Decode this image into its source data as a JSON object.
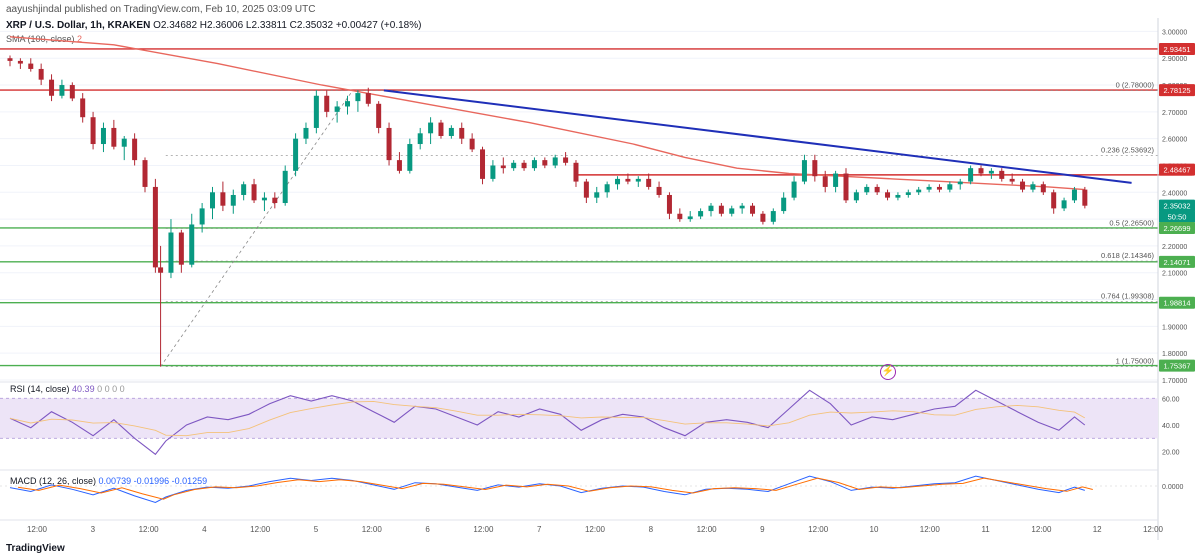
{
  "header": {
    "published": "aayushjindal published on TradingView.com, Feb 10, 2025 03:09 UTC",
    "symbol": "XRP / U.S. Dollar, 1h, KRAKEN",
    "ohlc": "O2.34682 H2.36006 L2.33811 C2.35032 +0.00427 (+0.18%)",
    "sma_label": "SMA (100, close)",
    "sma_value": "2"
  },
  "colors": {
    "up": "#089981",
    "down": "#b22833",
    "trendline": "#1f2fb8",
    "sma": "#e8675d",
    "resistance": "#d32f2f",
    "support": "#4caf50",
    "rsi": "#7e57c2",
    "rsi_band": "#ede4f7"
  },
  "chart_data": {
    "type": "candlestick",
    "ylim": [
      1.7,
      3.05
    ],
    "y_ticks": [
      "3.00000",
      "2.90000",
      "2.80000",
      "2.70000",
      "2.60000",
      "2.50000",
      "2.40000",
      "2.30000",
      "2.20000",
      "2.10000",
      "2.00000",
      "1.90000",
      "1.80000",
      "1.70000"
    ],
    "x_ticks": [
      "12:00",
      "3",
      "12:00",
      "4",
      "12:00",
      "5",
      "12:00",
      "6",
      "12:00",
      "7",
      "12:00",
      "8",
      "12:00",
      "9",
      "12:00",
      "10",
      "12:00",
      "11",
      "12:00",
      "12",
      "12:00"
    ],
    "price_tags": [
      {
        "value": 2.93451,
        "label": "2.93451",
        "color": "#d32f2f"
      },
      {
        "value": 2.78125,
        "label": "2.78125",
        "color": "#d32f2f"
      },
      {
        "value": 2.48467,
        "label": "2.48467",
        "color": "#d32f2f"
      },
      {
        "value": 2.35032,
        "label": "2.35032",
        "color": "#089981"
      },
      {
        "value": 2.35032,
        "label": "50:50",
        "color": "#089981",
        "offset": 1
      },
      {
        "value": 2.26699,
        "label": "2.26699",
        "color": "#4caf50"
      },
      {
        "value": 2.14071,
        "label": "2.14071",
        "color": "#4caf50"
      },
      {
        "value": 1.98814,
        "label": "1.98814",
        "color": "#4caf50"
      },
      {
        "value": 1.75367,
        "label": "1.75367",
        "color": "#4caf50"
      }
    ],
    "fib_levels": [
      {
        "label": "0 (2.78000)",
        "value": 2.78
      },
      {
        "label": "0.236 (2.53692)",
        "value": 2.53692
      },
      {
        "label": "0.5 (2.26500)",
        "value": 2.265
      },
      {
        "label": "0.618 (2.14346)",
        "value": 2.14346
      },
      {
        "label": "0.764 (1.99308)",
        "value": 1.99308
      },
      {
        "label": "1 (1.75000)",
        "value": 1.75
      }
    ],
    "horizontal_lines": [
      {
        "value": 2.93451,
        "color": "#d32f2f"
      },
      {
        "value": 2.78125,
        "color": "#d32f2f"
      },
      {
        "value": 2.26699,
        "color": "#4caf50"
      },
      {
        "value": 2.14071,
        "color": "#4caf50"
      },
      {
        "value": 1.98814,
        "color": "#4caf50"
      },
      {
        "value": 1.75367,
        "color": "#4caf50"
      }
    ],
    "trendline": {
      "x1": 3.6,
      "y1": 2.78,
      "x2": 10.8,
      "y2": 2.435
    },
    "resistance_segment": {
      "x1": 5.45,
      "x2": 11.0,
      "value": 2.465
    },
    "candles": [
      {
        "x": 0.0,
        "o": 2.9,
        "h": 2.91,
        "l": 2.87,
        "c": 2.89
      },
      {
        "x": 0.1,
        "o": 2.89,
        "h": 2.9,
        "l": 2.86,
        "c": 2.88
      },
      {
        "x": 0.2,
        "o": 2.88,
        "h": 2.9,
        "l": 2.85,
        "c": 2.86
      },
      {
        "x": 0.3,
        "o": 2.86,
        "h": 2.88,
        "l": 2.8,
        "c": 2.82
      },
      {
        "x": 0.4,
        "o": 2.82,
        "h": 2.84,
        "l": 2.74,
        "c": 2.76
      },
      {
        "x": 0.5,
        "o": 2.76,
        "h": 2.82,
        "l": 2.75,
        "c": 2.8
      },
      {
        "x": 0.6,
        "o": 2.8,
        "h": 2.81,
        "l": 2.74,
        "c": 2.75
      },
      {
        "x": 0.7,
        "o": 2.75,
        "h": 2.77,
        "l": 2.66,
        "c": 2.68
      },
      {
        "x": 0.8,
        "o": 2.68,
        "h": 2.7,
        "l": 2.56,
        "c": 2.58
      },
      {
        "x": 0.9,
        "o": 2.58,
        "h": 2.66,
        "l": 2.55,
        "c": 2.64
      },
      {
        "x": 1.0,
        "o": 2.64,
        "h": 2.67,
        "l": 2.56,
        "c": 2.57
      },
      {
        "x": 1.1,
        "o": 2.57,
        "h": 2.61,
        "l": 2.52,
        "c": 2.6
      },
      {
        "x": 1.2,
        "o": 2.6,
        "h": 2.62,
        "l": 2.5,
        "c": 2.52
      },
      {
        "x": 1.3,
        "o": 2.52,
        "h": 2.53,
        "l": 2.4,
        "c": 2.42
      },
      {
        "x": 1.4,
        "o": 2.42,
        "h": 2.45,
        "l": 2.1,
        "c": 2.12
      },
      {
        "x": 1.45,
        "o": 2.12,
        "h": 2.2,
        "l": 1.75,
        "c": 2.1
      },
      {
        "x": 1.55,
        "o": 2.1,
        "h": 2.3,
        "l": 2.08,
        "c": 2.25
      },
      {
        "x": 1.65,
        "o": 2.25,
        "h": 2.26,
        "l": 2.1,
        "c": 2.13
      },
      {
        "x": 1.75,
        "o": 2.13,
        "h": 2.32,
        "l": 2.12,
        "c": 2.28
      },
      {
        "x": 1.85,
        "o": 2.28,
        "h": 2.36,
        "l": 2.25,
        "c": 2.34
      },
      {
        "x": 1.95,
        "o": 2.34,
        "h": 2.42,
        "l": 2.3,
        "c": 2.4
      },
      {
        "x": 2.05,
        "o": 2.4,
        "h": 2.44,
        "l": 2.33,
        "c": 2.35
      },
      {
        "x": 2.15,
        "o": 2.35,
        "h": 2.41,
        "l": 2.32,
        "c": 2.39
      },
      {
        "x": 2.25,
        "o": 2.39,
        "h": 2.44,
        "l": 2.37,
        "c": 2.43
      },
      {
        "x": 2.35,
        "o": 2.43,
        "h": 2.45,
        "l": 2.36,
        "c": 2.37
      },
      {
        "x": 2.45,
        "o": 2.37,
        "h": 2.4,
        "l": 2.33,
        "c": 2.38
      },
      {
        "x": 2.55,
        "o": 2.38,
        "h": 2.4,
        "l": 2.34,
        "c": 2.36
      },
      {
        "x": 2.65,
        "o": 2.36,
        "h": 2.5,
        "l": 2.35,
        "c": 2.48
      },
      {
        "x": 2.75,
        "o": 2.48,
        "h": 2.62,
        "l": 2.46,
        "c": 2.6
      },
      {
        "x": 2.85,
        "o": 2.6,
        "h": 2.66,
        "l": 2.58,
        "c": 2.64
      },
      {
        "x": 2.95,
        "o": 2.64,
        "h": 2.78,
        "l": 2.62,
        "c": 2.76
      },
      {
        "x": 3.05,
        "o": 2.76,
        "h": 2.78,
        "l": 2.68,
        "c": 2.7
      },
      {
        "x": 3.15,
        "o": 2.7,
        "h": 2.74,
        "l": 2.66,
        "c": 2.72
      },
      {
        "x": 3.25,
        "o": 2.72,
        "h": 2.76,
        "l": 2.69,
        "c": 2.74
      },
      {
        "x": 3.35,
        "o": 2.74,
        "h": 2.78,
        "l": 2.7,
        "c": 2.77
      },
      {
        "x": 3.45,
        "o": 2.77,
        "h": 2.79,
        "l": 2.72,
        "c": 2.73
      },
      {
        "x": 3.55,
        "o": 2.73,
        "h": 2.74,
        "l": 2.62,
        "c": 2.64
      },
      {
        "x": 3.65,
        "o": 2.64,
        "h": 2.66,
        "l": 2.5,
        "c": 2.52
      },
      {
        "x": 3.75,
        "o": 2.52,
        "h": 2.55,
        "l": 2.47,
        "c": 2.48
      },
      {
        "x": 3.85,
        "o": 2.48,
        "h": 2.6,
        "l": 2.47,
        "c": 2.58
      },
      {
        "x": 3.95,
        "o": 2.58,
        "h": 2.64,
        "l": 2.56,
        "c": 2.62
      },
      {
        "x": 4.05,
        "o": 2.62,
        "h": 2.68,
        "l": 2.58,
        "c": 2.66
      },
      {
        "x": 4.15,
        "o": 2.66,
        "h": 2.67,
        "l": 2.6,
        "c": 2.61
      },
      {
        "x": 4.25,
        "o": 2.61,
        "h": 2.65,
        "l": 2.6,
        "c": 2.64
      },
      {
        "x": 4.35,
        "o": 2.64,
        "h": 2.66,
        "l": 2.58,
        "c": 2.6
      },
      {
        "x": 4.45,
        "o": 2.6,
        "h": 2.62,
        "l": 2.55,
        "c": 2.56
      },
      {
        "x": 4.55,
        "o": 2.56,
        "h": 2.57,
        "l": 2.43,
        "c": 2.45
      },
      {
        "x": 4.65,
        "o": 2.45,
        "h": 2.52,
        "l": 2.44,
        "c": 2.5
      },
      {
        "x": 4.75,
        "o": 2.5,
        "h": 2.53,
        "l": 2.47,
        "c": 2.49
      },
      {
        "x": 4.85,
        "o": 2.49,
        "h": 2.52,
        "l": 2.48,
        "c": 2.51
      },
      {
        "x": 4.95,
        "o": 2.51,
        "h": 2.52,
        "l": 2.48,
        "c": 2.49
      },
      {
        "x": 5.05,
        "o": 2.49,
        "h": 2.53,
        "l": 2.48,
        "c": 2.52
      },
      {
        "x": 5.15,
        "o": 2.52,
        "h": 2.53,
        "l": 2.49,
        "c": 2.5
      },
      {
        "x": 5.25,
        "o": 2.5,
        "h": 2.54,
        "l": 2.49,
        "c": 2.53
      },
      {
        "x": 5.35,
        "o": 2.53,
        "h": 2.55,
        "l": 2.5,
        "c": 2.51
      },
      {
        "x": 5.45,
        "o": 2.51,
        "h": 2.52,
        "l": 2.42,
        "c": 2.44
      },
      {
        "x": 5.55,
        "o": 2.44,
        "h": 2.45,
        "l": 2.36,
        "c": 2.38
      },
      {
        "x": 5.65,
        "o": 2.38,
        "h": 2.42,
        "l": 2.36,
        "c": 2.4
      },
      {
        "x": 5.75,
        "o": 2.4,
        "h": 2.44,
        "l": 2.38,
        "c": 2.43
      },
      {
        "x": 5.85,
        "o": 2.43,
        "h": 2.46,
        "l": 2.41,
        "c": 2.45
      },
      {
        "x": 5.95,
        "o": 2.45,
        "h": 2.47,
        "l": 2.43,
        "c": 2.44
      },
      {
        "x": 6.05,
        "o": 2.44,
        "h": 2.46,
        "l": 2.42,
        "c": 2.45
      },
      {
        "x": 6.15,
        "o": 2.45,
        "h": 2.47,
        "l": 2.41,
        "c": 2.42
      },
      {
        "x": 6.25,
        "o": 2.42,
        "h": 2.44,
        "l": 2.38,
        "c": 2.39
      },
      {
        "x": 6.35,
        "o": 2.39,
        "h": 2.4,
        "l": 2.3,
        "c": 2.32
      },
      {
        "x": 6.45,
        "o": 2.32,
        "h": 2.34,
        "l": 2.29,
        "c": 2.3
      },
      {
        "x": 6.55,
        "o": 2.3,
        "h": 2.33,
        "l": 2.29,
        "c": 2.31
      },
      {
        "x": 6.65,
        "o": 2.31,
        "h": 2.34,
        "l": 2.3,
        "c": 2.33
      },
      {
        "x": 6.75,
        "o": 2.33,
        "h": 2.36,
        "l": 2.31,
        "c": 2.35
      },
      {
        "x": 6.85,
        "o": 2.35,
        "h": 2.36,
        "l": 2.31,
        "c": 2.32
      },
      {
        "x": 6.95,
        "o": 2.32,
        "h": 2.35,
        "l": 2.31,
        "c": 2.34
      },
      {
        "x": 7.05,
        "o": 2.34,
        "h": 2.36,
        "l": 2.32,
        "c": 2.35
      },
      {
        "x": 7.15,
        "o": 2.35,
        "h": 2.36,
        "l": 2.31,
        "c": 2.32
      },
      {
        "x": 7.25,
        "o": 2.32,
        "h": 2.33,
        "l": 2.28,
        "c": 2.29
      },
      {
        "x": 7.35,
        "o": 2.29,
        "h": 2.34,
        "l": 2.28,
        "c": 2.33
      },
      {
        "x": 7.45,
        "o": 2.33,
        "h": 2.4,
        "l": 2.32,
        "c": 2.38
      },
      {
        "x": 7.55,
        "o": 2.38,
        "h": 2.46,
        "l": 2.37,
        "c": 2.44
      },
      {
        "x": 7.65,
        "o": 2.44,
        "h": 2.54,
        "l": 2.43,
        "c": 2.52
      },
      {
        "x": 7.75,
        "o": 2.52,
        "h": 2.54,
        "l": 2.44,
        "c": 2.46
      },
      {
        "x": 7.85,
        "o": 2.46,
        "h": 2.48,
        "l": 2.4,
        "c": 2.42
      },
      {
        "x": 7.95,
        "o": 2.42,
        "h": 2.48,
        "l": 2.4,
        "c": 2.47
      },
      {
        "x": 8.05,
        "o": 2.47,
        "h": 2.49,
        "l": 2.36,
        "c": 2.37
      },
      {
        "x": 8.15,
        "o": 2.37,
        "h": 2.41,
        "l": 2.36,
        "c": 2.4
      },
      {
        "x": 8.25,
        "o": 2.4,
        "h": 2.43,
        "l": 2.39,
        "c": 2.42
      },
      {
        "x": 8.35,
        "o": 2.42,
        "h": 2.43,
        "l": 2.39,
        "c": 2.4
      },
      {
        "x": 8.45,
        "o": 2.4,
        "h": 2.41,
        "l": 2.37,
        "c": 2.38
      },
      {
        "x": 8.55,
        "o": 2.38,
        "h": 2.4,
        "l": 2.37,
        "c": 2.39
      },
      {
        "x": 8.65,
        "o": 2.39,
        "h": 2.41,
        "l": 2.38,
        "c": 2.4
      },
      {
        "x": 8.75,
        "o": 2.4,
        "h": 2.42,
        "l": 2.39,
        "c": 2.41
      },
      {
        "x": 8.85,
        "o": 2.41,
        "h": 2.43,
        "l": 2.4,
        "c": 2.42
      },
      {
        "x": 8.95,
        "o": 2.42,
        "h": 2.43,
        "l": 2.4,
        "c": 2.41
      },
      {
        "x": 9.05,
        "o": 2.41,
        "h": 2.44,
        "l": 2.4,
        "c": 2.43
      },
      {
        "x": 9.15,
        "o": 2.43,
        "h": 2.45,
        "l": 2.41,
        "c": 2.44
      },
      {
        "x": 9.25,
        "o": 2.44,
        "h": 2.5,
        "l": 2.43,
        "c": 2.49
      },
      {
        "x": 9.35,
        "o": 2.49,
        "h": 2.5,
        "l": 2.46,
        "c": 2.47
      },
      {
        "x": 9.45,
        "o": 2.47,
        "h": 2.49,
        "l": 2.45,
        "c": 2.48
      },
      {
        "x": 9.55,
        "o": 2.48,
        "h": 2.49,
        "l": 2.44,
        "c": 2.45
      },
      {
        "x": 9.65,
        "o": 2.45,
        "h": 2.47,
        "l": 2.43,
        "c": 2.44
      },
      {
        "x": 9.75,
        "o": 2.44,
        "h": 2.45,
        "l": 2.4,
        "c": 2.41
      },
      {
        "x": 9.85,
        "o": 2.41,
        "h": 2.44,
        "l": 2.4,
        "c": 2.43
      },
      {
        "x": 9.95,
        "o": 2.43,
        "h": 2.44,
        "l": 2.39,
        "c": 2.4
      },
      {
        "x": 10.05,
        "o": 2.4,
        "h": 2.41,
        "l": 2.32,
        "c": 2.34
      },
      {
        "x": 10.15,
        "o": 2.34,
        "h": 2.38,
        "l": 2.33,
        "c": 2.37
      },
      {
        "x": 10.25,
        "o": 2.37,
        "h": 2.42,
        "l": 2.36,
        "c": 2.41
      },
      {
        "x": 10.35,
        "o": 2.41,
        "h": 2.42,
        "l": 2.34,
        "c": 2.35
      }
    ],
    "sma": [
      [
        0.0,
        2.98
      ],
      [
        1.0,
        2.95
      ],
      [
        2.0,
        2.88
      ],
      [
        3.0,
        2.8
      ],
      [
        4.0,
        2.73
      ],
      [
        5.0,
        2.66
      ],
      [
        6.0,
        2.58
      ],
      [
        6.5,
        2.53
      ],
      [
        7.0,
        2.49
      ],
      [
        7.5,
        2.47
      ],
      [
        8.0,
        2.46
      ],
      [
        8.5,
        2.45
      ],
      [
        9.0,
        2.44
      ],
      [
        9.5,
        2.43
      ],
      [
        10.0,
        2.42
      ],
      [
        10.35,
        2.41
      ]
    ],
    "rsi": {
      "label": "RSI (14, close)",
      "value": "40.39",
      "extra": "0 0 0 0",
      "ylim": [
        10,
        70
      ],
      "bands": [
        30,
        60
      ],
      "y_ticks": [
        "60.00",
        "40.00",
        "20.00"
      ],
      "values": [
        [
          0.0,
          45
        ],
        [
          0.2,
          38
        ],
        [
          0.4,
          50
        ],
        [
          0.6,
          42
        ],
        [
          0.8,
          32
        ],
        [
          1.0,
          44
        ],
        [
          1.2,
          30
        ],
        [
          1.4,
          18
        ],
        [
          1.5,
          28
        ],
        [
          1.7,
          40
        ],
        [
          1.9,
          46
        ],
        [
          2.1,
          44
        ],
        [
          2.3,
          48
        ],
        [
          2.5,
          56
        ],
        [
          2.7,
          62
        ],
        [
          2.9,
          58
        ],
        [
          3.1,
          62
        ],
        [
          3.3,
          58
        ],
        [
          3.5,
          50
        ],
        [
          3.7,
          42
        ],
        [
          3.9,
          54
        ],
        [
          4.1,
          52
        ],
        [
          4.3,
          46
        ],
        [
          4.5,
          40
        ],
        [
          4.7,
          50
        ],
        [
          4.9,
          46
        ],
        [
          5.1,
          52
        ],
        [
          5.3,
          48
        ],
        [
          5.5,
          36
        ],
        [
          5.7,
          44
        ],
        [
          5.9,
          48
        ],
        [
          6.1,
          46
        ],
        [
          6.3,
          38
        ],
        [
          6.5,
          32
        ],
        [
          6.7,
          42
        ],
        [
          6.9,
          44
        ],
        [
          7.1,
          42
        ],
        [
          7.3,
          38
        ],
        [
          7.5,
          52
        ],
        [
          7.7,
          66
        ],
        [
          7.9,
          56
        ],
        [
          8.1,
          40
        ],
        [
          8.3,
          46
        ],
        [
          8.5,
          44
        ],
        [
          8.7,
          48
        ],
        [
          8.9,
          52
        ],
        [
          9.1,
          54
        ],
        [
          9.3,
          66
        ],
        [
          9.5,
          58
        ],
        [
          9.7,
          50
        ],
        [
          9.9,
          42
        ],
        [
          10.1,
          36
        ],
        [
          10.25,
          46
        ],
        [
          10.35,
          40
        ]
      ]
    },
    "macd": {
      "label": "MACD (12, 26, close)",
      "values_text": "0.00739   -0.01996   -0.01259",
      "y_ticks": [
        "0.0000"
      ]
    }
  }
}
